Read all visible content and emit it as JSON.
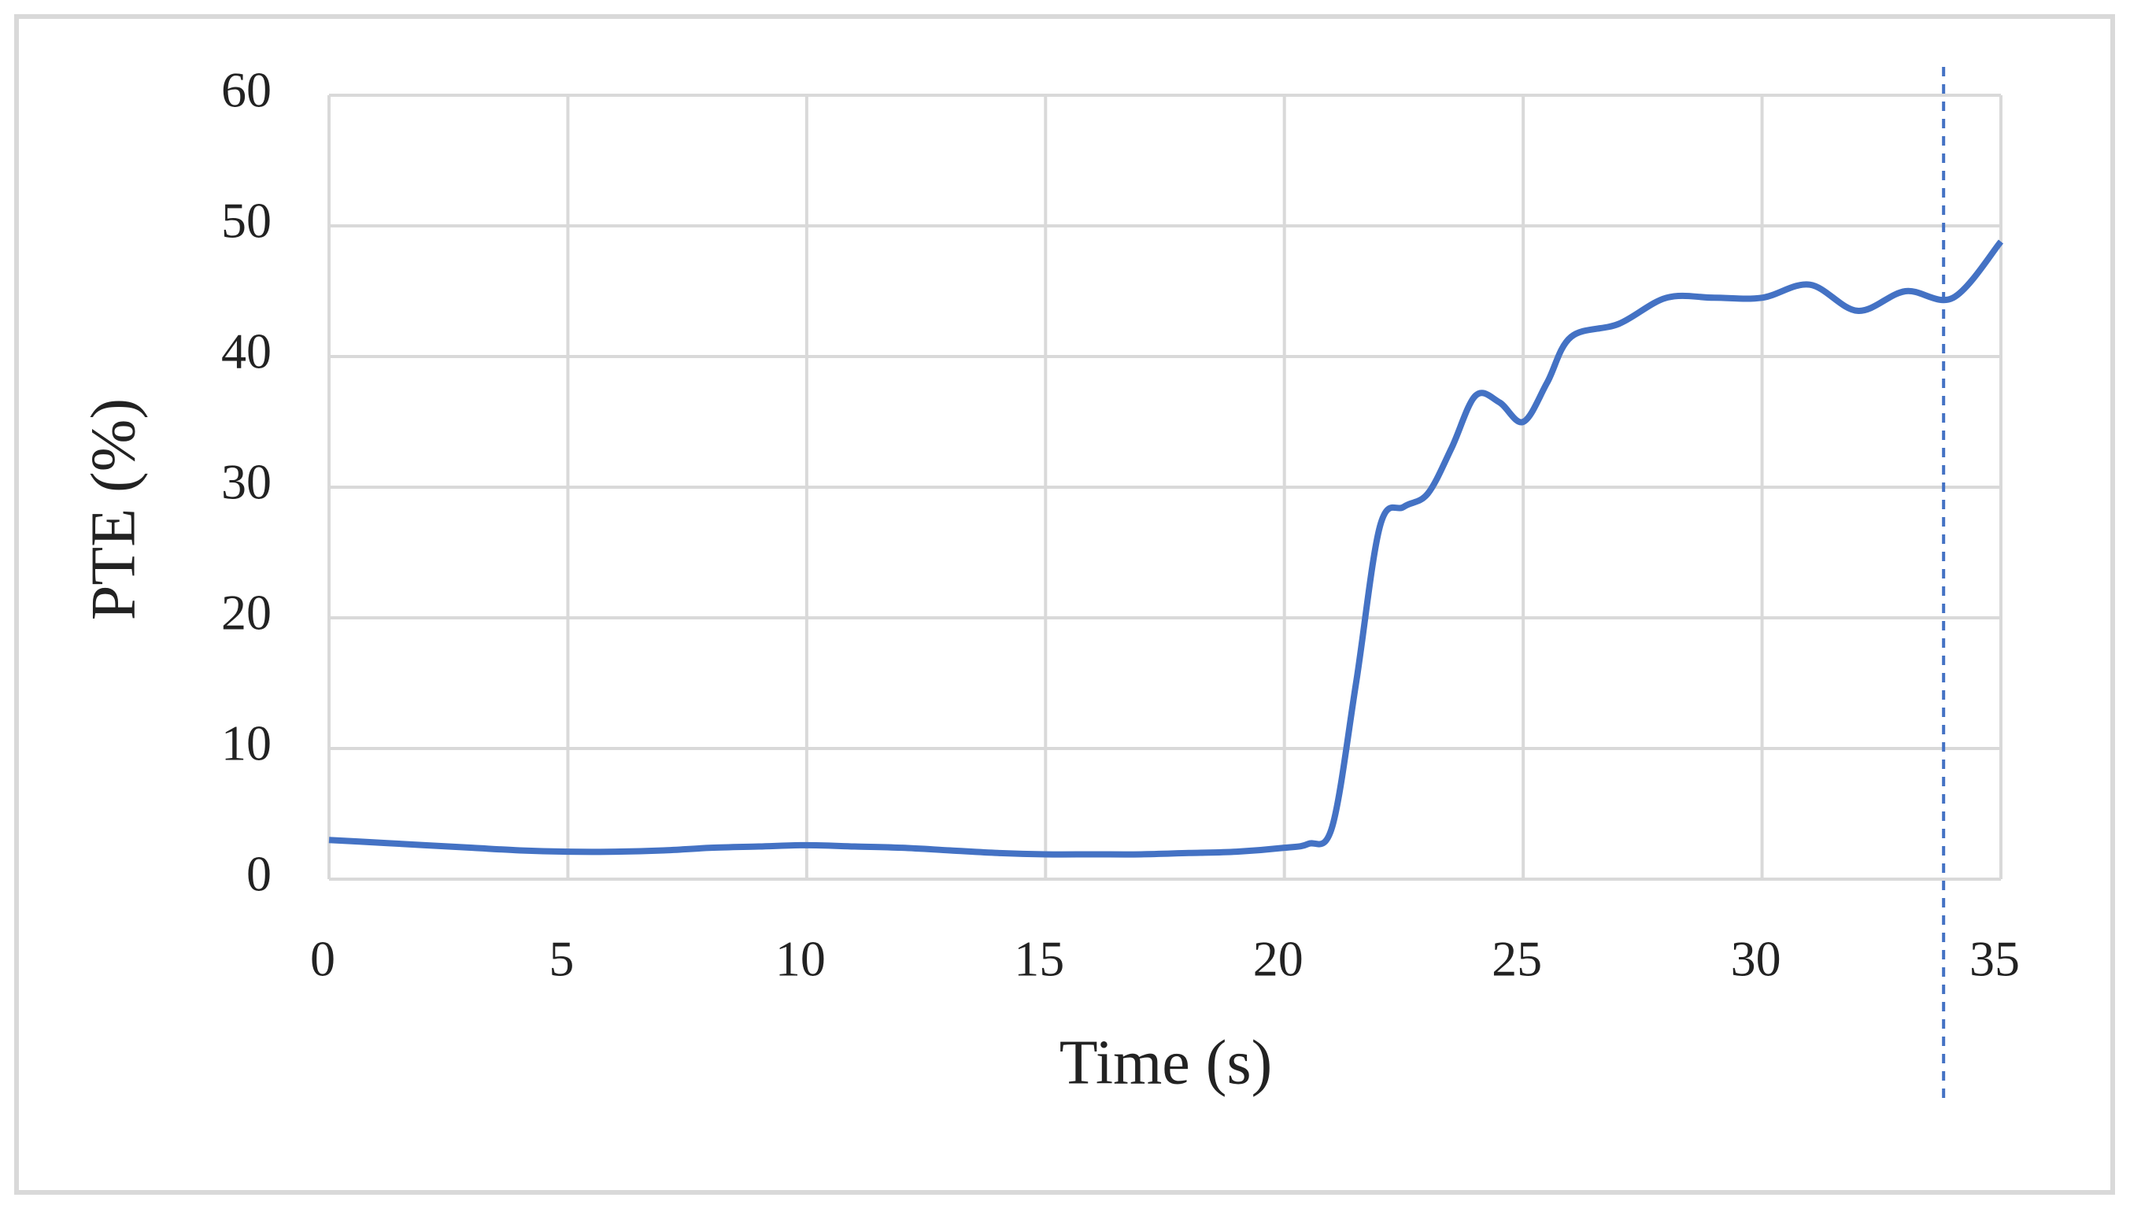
{
  "chart_data": {
    "type": "line",
    "xlabel": "Time (s)",
    "ylabel": "PTE (%)",
    "x": [
      0,
      1,
      2,
      3,
      4,
      5,
      6,
      7,
      8,
      9,
      10,
      11,
      12,
      13,
      14,
      15,
      16,
      17,
      18,
      19,
      20,
      20.5,
      21,
      21.5,
      22,
      22.5,
      23,
      23.5,
      24,
      24.5,
      25,
      25.5,
      26,
      27,
      28,
      29,
      30,
      31,
      32,
      33,
      34,
      35
    ],
    "series": [
      {
        "name": "PTE",
        "color": "#4472c4",
        "values": [
          3.0,
          2.8,
          2.6,
          2.4,
          2.2,
          2.1,
          2.1,
          2.2,
          2.4,
          2.5,
          2.6,
          2.5,
          2.4,
          2.2,
          2.0,
          1.9,
          1.9,
          1.9,
          2.0,
          2.1,
          2.4,
          2.7,
          4.0,
          15,
          27,
          28.5,
          29.5,
          33,
          37,
          36.5,
          35,
          38,
          41.5,
          42.5,
          44.5,
          44.5,
          44.5,
          45.5,
          43.5,
          45,
          44.5,
          48.8
        ]
      }
    ],
    "xlim": [
      0,
      35
    ],
    "xticks": [
      0,
      5,
      10,
      15,
      20,
      25,
      30,
      35
    ],
    "ylim": [
      0,
      60
    ],
    "yticks": [
      0,
      10,
      20,
      30,
      40,
      50,
      60
    ],
    "grid": true,
    "vline_x": 33.8,
    "vline_color": "#4472c4"
  }
}
